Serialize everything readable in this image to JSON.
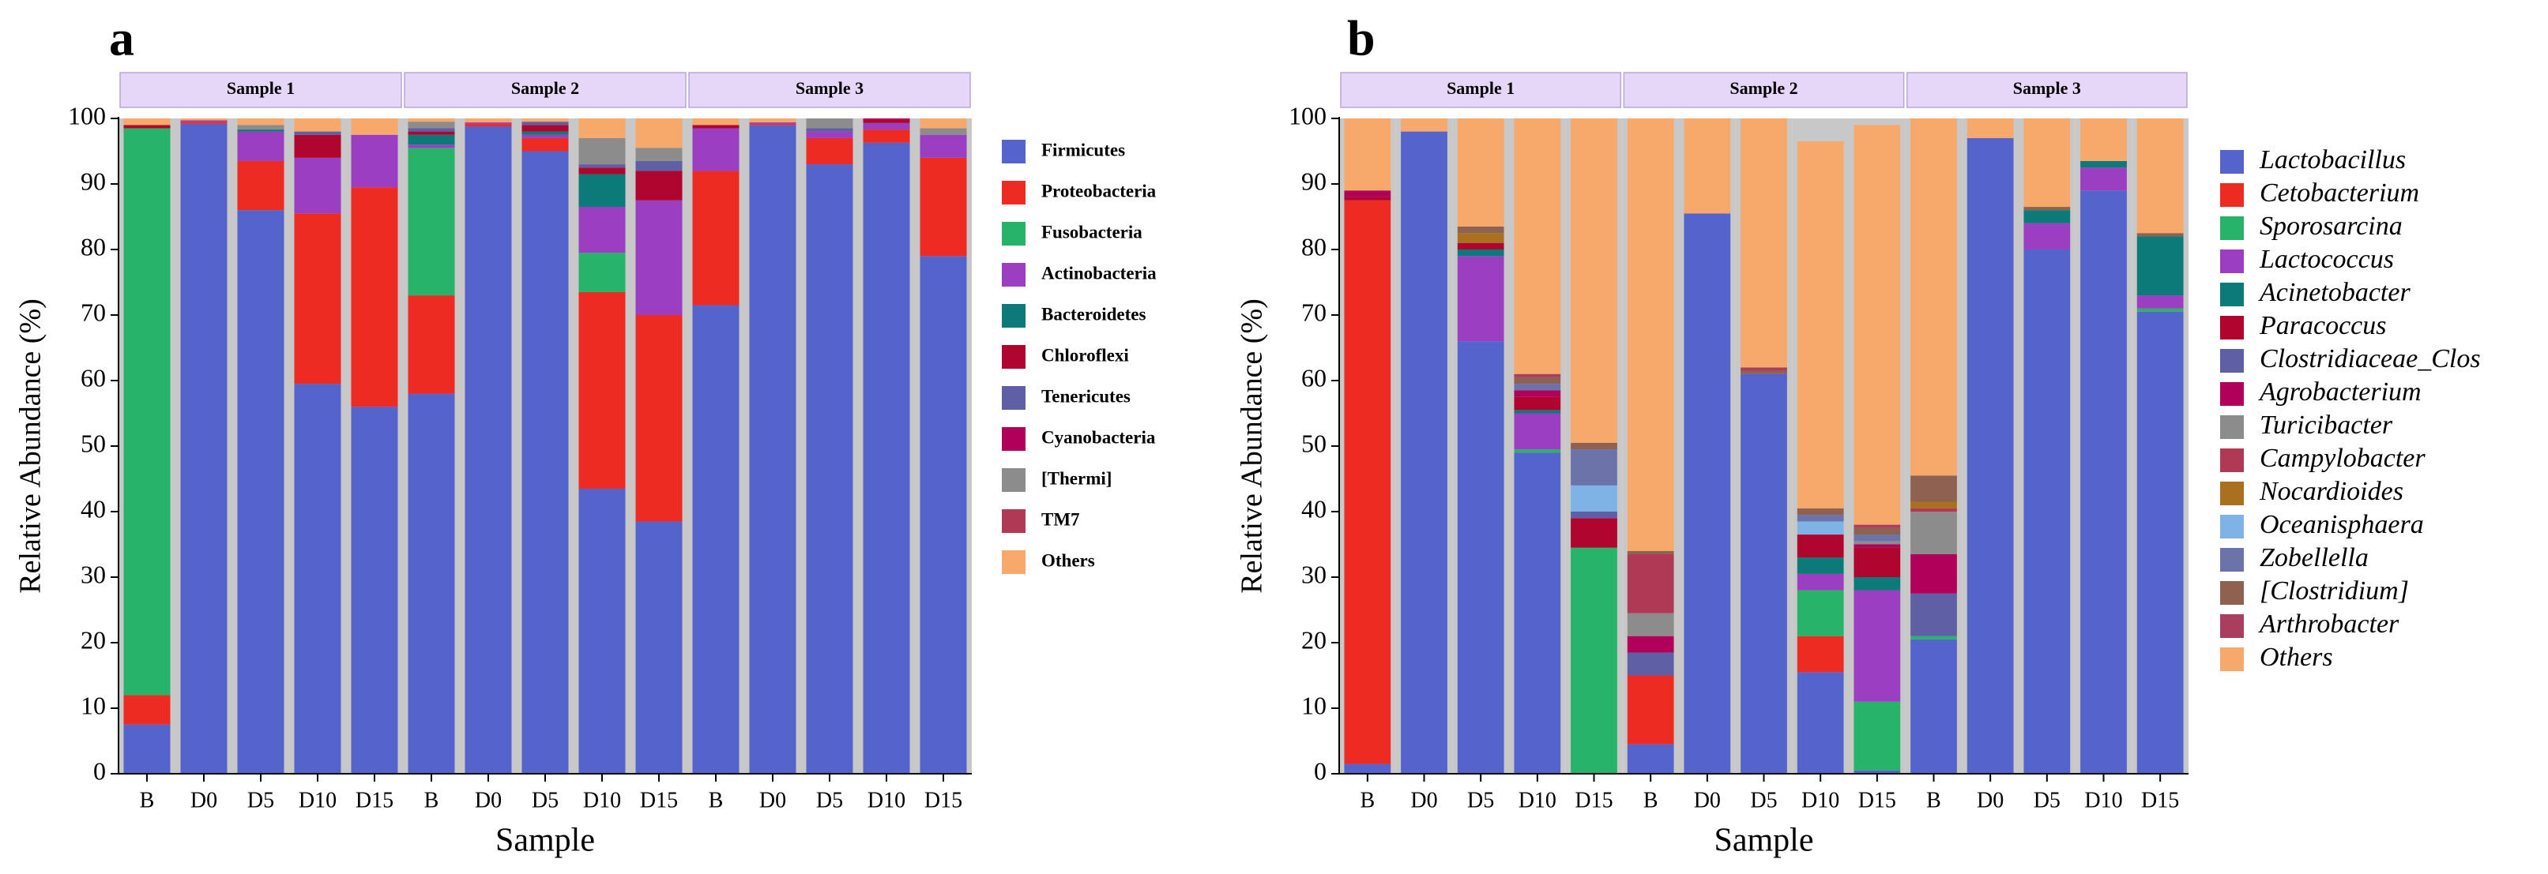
{
  "figure": {
    "panels": [
      "a",
      "b"
    ]
  },
  "chart_data": [
    {
      "panel_label": "a",
      "type": "bar",
      "stacked": true,
      "xlabel": "Sample",
      "ylabel": "Relative Abundance (%)",
      "ylim": [
        0,
        100
      ],
      "yticks": [
        0,
        10,
        20,
        30,
        40,
        50,
        60,
        70,
        80,
        90,
        100
      ],
      "groups": [
        {
          "name": "Sample 1",
          "categories": [
            "B",
            "D0",
            "D5",
            "D10",
            "D15"
          ]
        },
        {
          "name": "Sample 2",
          "categories": [
            "B",
            "D0",
            "D5",
            "D10",
            "D15"
          ]
        },
        {
          "name": "Sample 3",
          "categories": [
            "B",
            "D0",
            "D5",
            "D10",
            "D15"
          ]
        }
      ],
      "legend_italic": false,
      "series": [
        {
          "name": "Firmicutes",
          "color": "#5563CC",
          "values": [
            7.5,
            99.2,
            86,
            59.5,
            56,
            58,
            98.8,
            95,
            43.5,
            38.5,
            71.5,
            99,
            93,
            96.3,
            79
          ]
        },
        {
          "name": "Proteobacteria",
          "color": "#EE2B22",
          "values": [
            4.5,
            0.3,
            7.5,
            26,
            33.5,
            15,
            0.4,
            2,
            30,
            31.5,
            20.5,
            0.2,
            4,
            2,
            15
          ]
        },
        {
          "name": "Fusobacteria",
          "color": "#27B46A",
          "values": [
            86.5,
            0,
            0,
            0,
            0,
            22.5,
            0,
            0,
            6,
            0,
            0,
            0,
            0,
            0,
            0
          ]
        },
        {
          "name": "Actinobacteria",
          "color": "#9B3EC2",
          "values": [
            0,
            0.2,
            4.5,
            8.5,
            8,
            0.5,
            0.2,
            0.5,
            7,
            17.5,
            6.5,
            0.2,
            1,
            1,
            3.5
          ]
        },
        {
          "name": "Bacteroidetes",
          "color": "#0B7A78",
          "values": [
            0,
            0,
            0.3,
            0,
            0,
            1.5,
            0,
            0.5,
            5,
            0,
            0,
            0,
            0,
            0,
            0
          ]
        },
        {
          "name": "Chloroflexi",
          "color": "#B0052E",
          "values": [
            0.5,
            0,
            0,
            3.5,
            0,
            0.5,
            0,
            1,
            1,
            4.5,
            0.5,
            0,
            0,
            0.5,
            0
          ]
        },
        {
          "name": "Tenericutes",
          "color": "#5F5FA6",
          "values": [
            0,
            0,
            0,
            0.5,
            0,
            0.5,
            0,
            0.5,
            0.5,
            1.5,
            0,
            0,
            0.5,
            0,
            0
          ]
        },
        {
          "name": "Cyanobacteria",
          "color": "#B10059",
          "values": [
            0,
            0,
            0,
            0,
            0,
            0,
            0,
            0,
            0,
            0,
            0,
            0,
            0,
            0.2,
            0
          ]
        },
        {
          "name": "[Thermi]",
          "color": "#8C8C8C",
          "values": [
            0,
            0,
            0.7,
            0,
            0,
            1,
            0,
            0,
            4,
            2,
            0,
            0,
            1.5,
            0,
            1
          ]
        },
        {
          "name": "TM7",
          "color": "#B03A55",
          "values": [
            0,
            0,
            0,
            0,
            0,
            0,
            0,
            0,
            0,
            0,
            0,
            0,
            0,
            0,
            0
          ]
        },
        {
          "name": "Others",
          "color": "#F6A96A",
          "values": [
            1,
            0.3,
            1,
            2,
            2.5,
            0.5,
            0.6,
            0.5,
            3,
            4.5,
            1,
            0.6,
            0,
            0,
            1.5
          ]
        }
      ]
    },
    {
      "panel_label": "b",
      "type": "bar",
      "stacked": true,
      "xlabel": "Sample",
      "ylabel": "Relative Abundance (%)",
      "ylim": [
        0,
        100
      ],
      "yticks": [
        0,
        10,
        20,
        30,
        40,
        50,
        60,
        70,
        80,
        90,
        100
      ],
      "groups": [
        {
          "name": "Sample 1",
          "categories": [
            "B",
            "D0",
            "D5",
            "D10",
            "D15"
          ]
        },
        {
          "name": "Sample 2",
          "categories": [
            "B",
            "D0",
            "D5",
            "D10",
            "D15"
          ]
        },
        {
          "name": "Sample 3",
          "categories": [
            "B",
            "D0",
            "D5",
            "D10",
            "D15"
          ]
        }
      ],
      "legend_italic": true,
      "series": [
        {
          "name": "Lactobacillus",
          "color": "#5563CC",
          "values": [
            1.5,
            98,
            66,
            49,
            0,
            4.5,
            85.5,
            61,
            15.5,
            0.5,
            20.5,
            97,
            80,
            89,
            70.5
          ]
        },
        {
          "name": "Cetobacterium",
          "color": "#EE2B22",
          "values": [
            86,
            0,
            0,
            0,
            0,
            10.5,
            0,
            0,
            5.5,
            0,
            0,
            0,
            0,
            0,
            0
          ]
        },
        {
          "name": "Sporosarcina",
          "color": "#27B46A",
          "values": [
            0,
            0,
            0,
            0.5,
            34.5,
            0,
            0,
            0,
            7,
            10.5,
            0.5,
            0,
            0,
            0,
            0.5
          ]
        },
        {
          "name": "Lactococcus",
          "color": "#9B3EC2",
          "values": [
            0,
            0,
            13,
            5.5,
            0,
            0,
            0,
            0,
            2.5,
            17,
            0,
            0,
            4,
            3.5,
            2
          ]
        },
        {
          "name": "Acinetobacter",
          "color": "#0B7A78",
          "values": [
            0,
            0,
            1,
            0.5,
            0,
            0,
            0,
            0,
            2.5,
            2,
            0,
            0,
            2,
            1,
            9
          ]
        },
        {
          "name": "Paracoccus",
          "color": "#B0052E",
          "values": [
            0.5,
            0,
            1,
            2,
            4.5,
            0,
            0,
            0,
            3.5,
            4.5,
            0,
            0,
            0,
            0,
            0
          ]
        },
        {
          "name": "Clostridiaceae_Clos",
          "color": "#5F5FA6",
          "values": [
            0,
            0,
            0,
            0,
            1,
            3.5,
            0,
            0,
            0,
            0,
            6.5,
            0,
            0,
            0,
            0
          ]
        },
        {
          "name": "Agrobacterium",
          "color": "#B10059",
          "values": [
            1,
            0,
            0,
            1,
            0,
            2.5,
            0,
            0,
            0,
            0.5,
            6,
            0,
            0,
            0,
            0
          ]
        },
        {
          "name": "Turicibacter",
          "color": "#8C8C8C",
          "values": [
            0,
            0,
            0,
            0,
            0,
            3.5,
            0,
            0,
            0,
            0.5,
            6.5,
            0,
            0,
            0,
            0
          ]
        },
        {
          "name": "Campylobacter",
          "color": "#B03A55",
          "values": [
            0,
            0,
            0,
            0,
            0,
            9,
            0,
            0,
            0,
            0,
            0.5,
            0,
            0,
            0,
            0
          ]
        },
        {
          "name": "Nocardioides",
          "color": "#A8701F",
          "values": [
            0,
            0,
            1.5,
            0,
            0,
            0,
            0,
            0,
            0,
            0,
            1,
            0,
            0,
            0,
            0
          ]
        },
        {
          "name": "Oceanisphaera",
          "color": "#7FB3E6",
          "values": [
            0,
            0,
            0,
            0,
            4,
            0,
            0,
            0,
            2,
            0,
            0,
            0,
            0,
            0,
            0
          ]
        },
        {
          "name": "Zobellella",
          "color": "#6B73A8",
          "values": [
            0,
            0,
            0,
            1,
            5.5,
            0,
            0,
            0,
            1,
            1,
            0,
            0,
            0,
            0,
            0
          ]
        },
        {
          "name": "[Clostridium]",
          "color": "#8E6150",
          "values": [
            0,
            0,
            1,
            1,
            1,
            0.5,
            0,
            0.5,
            1,
            1,
            4,
            0,
            0.5,
            0,
            0.5
          ]
        },
        {
          "name": "Arthrobacter",
          "color": "#A93E5E",
          "values": [
            0,
            0,
            0,
            0.5,
            0,
            0,
            0,
            0.5,
            0,
            0.5,
            0,
            0,
            0,
            0,
            0
          ]
        },
        {
          "name": "Others",
          "color": "#F6A96A",
          "values": [
            11,
            2,
            16.5,
            39,
            49.5,
            66,
            14.5,
            38,
            56,
            61,
            54.5,
            3,
            13.5,
            6.5,
            17.5
          ]
        }
      ]
    }
  ]
}
